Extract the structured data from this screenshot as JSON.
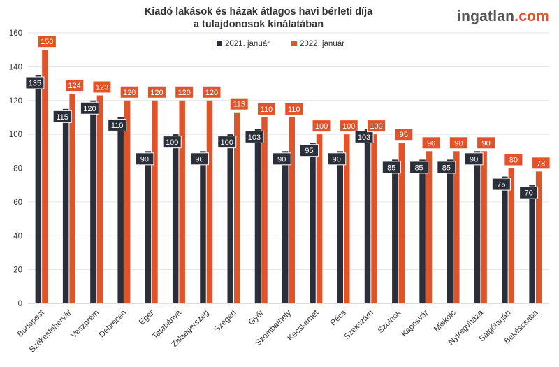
{
  "header": {
    "title_line1": "Kiadó lakások és házak átlagos havi bérleti díja",
    "title_line2": "a tulajdonosok kínálatában",
    "brand_main": "ingatlan",
    "brand_tld": ".com"
  },
  "colors": {
    "series_2021": "#2b2f3a",
    "series_2022": "#e0542c",
    "grid": "#e3e3e3",
    "axis": "#bbbbbb"
  },
  "chart_data": {
    "type": "bar",
    "title": "Kiadó lakások és házak átlagos havi bérleti díja a tulajdonosok kínálatában",
    "xlabel": "",
    "ylabel": "",
    "ylim": [
      0,
      160
    ],
    "yticks": [
      0,
      20,
      40,
      60,
      80,
      100,
      120,
      140,
      160
    ],
    "grid": true,
    "legend_position": "top-center",
    "categories": [
      "Budapest",
      "Székesfehérvár",
      "Veszprém",
      "Debrecen",
      "Eger",
      "Tatabánya",
      "Zalaegerszeg",
      "Szeged",
      "Győr",
      "Szombathely",
      "Kecskemét",
      "Pécs",
      "Szekszárd",
      "Szolnok",
      "Kaposvár",
      "Miskolc",
      "Nyíregyháza",
      "Salgótarján",
      "Békéscsaba"
    ],
    "series": [
      {
        "name": "2021. január",
        "color": "#2b2f3a",
        "values": [
          135,
          115,
          120,
          110,
          90,
          100,
          90,
          100,
          103,
          90,
          95,
          90,
          103,
          85,
          85,
          85,
          90,
          75,
          70
        ]
      },
      {
        "name": "2022. január",
        "color": "#e0542c",
        "values": [
          150,
          124,
          123,
          120,
          120,
          120,
          120,
          113,
          110,
          110,
          100,
          100,
          100,
          95,
          90,
          90,
          90,
          80,
          78
        ]
      }
    ]
  }
}
